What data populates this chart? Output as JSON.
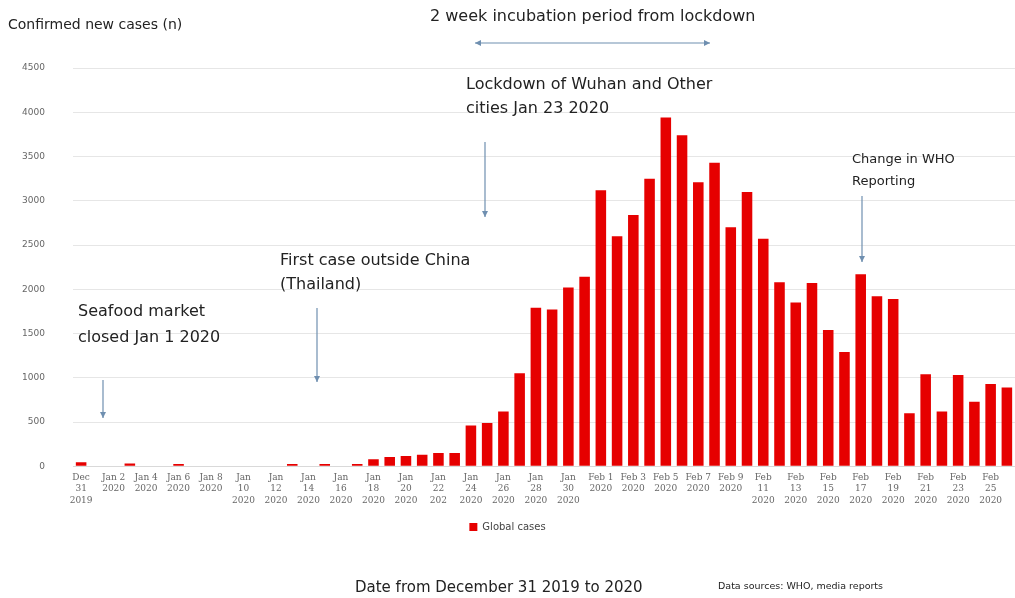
{
  "chart_data": {
    "type": "bar",
    "xlabel": "Date from December 31 2019 to 2020",
    "ylabel": "Confirmed new cases (n)",
    "categories": [
      "Dec 31 2019",
      null,
      "Jan 2 2020",
      null,
      "Jan 4 2020",
      null,
      "Jan 6 2020",
      null,
      "Jan 8 2020",
      null,
      "Jan 10 2020",
      null,
      "Jan 12 2020",
      null,
      "Jan 14 2020",
      null,
      "Jan 16 2020",
      null,
      "Jan 18 2020",
      null,
      "Jan 20 2020",
      null,
      "Jan 22 202",
      null,
      "Jan 24 2020",
      null,
      "Jan 26 2020",
      null,
      "Jan 28 2020",
      null,
      "Jan 30 2020",
      null,
      "Feb 1 2020",
      null,
      "Feb 3 2020",
      null,
      "Feb 5 2020",
      null,
      "Feb 7 2020",
      null,
      "Feb 9 2020",
      null,
      "Feb 11 2020",
      null,
      "Feb 13 2020",
      null,
      "Feb 15 2020",
      null,
      "Feb 17 2020",
      null,
      "Feb 19 2020",
      null,
      "Feb 21 2020",
      null,
      "Feb 23 2020",
      null,
      "Feb 25 2020",
      null
    ],
    "series": [
      {
        "name": "Global cases",
        "color": "#e60000",
        "values": [
          45,
          0,
          0,
          30,
          0,
          0,
          25,
          0,
          0,
          0,
          0,
          0,
          0,
          25,
          0,
          25,
          0,
          25,
          80,
          105,
          115,
          130,
          150,
          150,
          460,
          490,
          620,
          1050,
          1790,
          1770,
          2020,
          2140,
          3120,
          2600,
          2840,
          3250,
          3940,
          3740,
          3210,
          3430,
          2700,
          3100,
          2570,
          2080,
          1850,
          2070,
          1540,
          1290,
          2170,
          1920,
          1890,
          600,
          1040,
          620,
          1030,
          730,
          930,
          890
        ]
      }
    ],
    "ylim": [
      0,
      4500
    ],
    "yticks": [
      0,
      500,
      1000,
      1500,
      2000,
      2500,
      3000,
      3500,
      4000,
      4500
    ],
    "grid": "y",
    "legend": "bottom",
    "annotations": [
      "2 week incubation period from lockdown",
      "Lockdown of Wuhan and Other cities Jan 23 2020",
      "First case outside China (Thailand)",
      "Seafood market closed Jan 1 2020",
      "Change in WHO Reporting",
      "Data sources: WHO, media reports"
    ]
  }
}
